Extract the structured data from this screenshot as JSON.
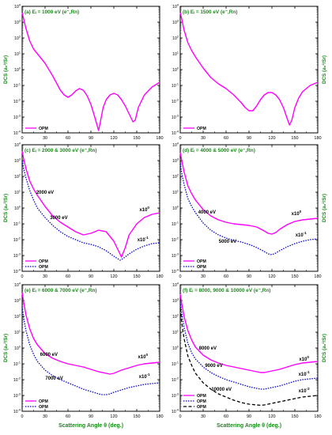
{
  "figure": {
    "y_axis_label": "DCS (a₀²/Sr)",
    "x_axis_label": "Scattering Angle θ (deg.)"
  },
  "colors": {
    "opm_magenta": "#ff00ff",
    "opm_blue": "#0000cc",
    "black": "#000000",
    "panel_title_green": "#1a8a1a"
  },
  "chart_data": [
    {
      "panel": "a",
      "type": "line",
      "title": "(a) Eᵢ = 1000 eV (e⁻,Rn)",
      "xlim": [
        0,
        180
      ],
      "xticks": [
        0,
        30,
        60,
        90,
        120,
        150,
        180
      ],
      "ylim_exp": [
        -4,
        4
      ],
      "yscale": "log",
      "ytick_exps": [
        -4,
        -3,
        -2,
        -1,
        0,
        1,
        2,
        3,
        4
      ],
      "ylabel_side": "left",
      "legend": [
        {
          "label": "OPM",
          "color": "#ff00ff",
          "style": "solid"
        }
      ],
      "series": [
        {
          "name": "OPM",
          "color": "#ff00ff",
          "style": "solid",
          "x": [
            0,
            2,
            5,
            10,
            15,
            20,
            30,
            40,
            50,
            55,
            60,
            65,
            70,
            75,
            80,
            85,
            90,
            95,
            98,
            100,
            102,
            106,
            110,
            115,
            120,
            125,
            130,
            135,
            140,
            145,
            148,
            152,
            160,
            170,
            180
          ],
          "y_exp": [
            3.6,
            3.2,
            2.6,
            1.8,
            1.3,
            1.0,
            0.4,
            -0.4,
            -1.3,
            -1.6,
            -1.75,
            -1.6,
            -1.35,
            -1.2,
            -1.3,
            -1.65,
            -2.2,
            -3.0,
            -3.5,
            -3.85,
            -3.4,
            -2.4,
            -1.9,
            -1.6,
            -1.5,
            -1.6,
            -1.9,
            -2.3,
            -2.8,
            -3.3,
            -3.2,
            -2.4,
            -1.6,
            -1.1,
            -0.8
          ]
        }
      ]
    },
    {
      "panel": "b",
      "type": "line",
      "title": "(b) Eᵢ = 1500 eV (e⁻,Rn)",
      "xlim": [
        0,
        180
      ],
      "xticks": [
        0,
        30,
        60,
        90,
        120,
        150,
        180
      ],
      "ylim_exp": [
        -4,
        4
      ],
      "yscale": "log",
      "ytick_exps": [
        -4,
        -3,
        -2,
        -1,
        0,
        1,
        2,
        3,
        4
      ],
      "ylabel_side": "right",
      "legend": [
        {
          "label": "OPM",
          "color": "#ff00ff",
          "style": "solid"
        }
      ],
      "series": [
        {
          "name": "OPM",
          "color": "#ff00ff",
          "style": "solid",
          "x": [
            0,
            2,
            5,
            10,
            15,
            20,
            30,
            40,
            50,
            60,
            70,
            80,
            85,
            90,
            95,
            100,
            105,
            110,
            115,
            120,
            125,
            130,
            135,
            140,
            143,
            146,
            150,
            155,
            160,
            170,
            180
          ],
          "y_exp": [
            3.6,
            3.2,
            2.5,
            1.7,
            1.2,
            0.8,
            0.1,
            -0.5,
            -0.9,
            -1.2,
            -1.6,
            -2.1,
            -2.4,
            -2.6,
            -2.6,
            -2.3,
            -1.9,
            -1.6,
            -1.45,
            -1.45,
            -1.6,
            -1.9,
            -2.4,
            -3.1,
            -3.5,
            -3.2,
            -2.4,
            -1.8,
            -1.4,
            -1.0,
            -0.8
          ]
        }
      ]
    },
    {
      "panel": "c",
      "type": "line",
      "title": "(c) Eᵢ = 2000 & 3000 eV (e⁻,Rn)",
      "xlim": [
        0,
        180
      ],
      "xticks": [
        0,
        30,
        60,
        90,
        120,
        150,
        180
      ],
      "ylim_exp": [
        -4,
        4
      ],
      "yscale": "log",
      "ytick_exps": [
        -4,
        -3,
        -2,
        -1,
        0,
        1,
        2,
        3,
        4
      ],
      "ylabel_side": "left",
      "annotations": [
        {
          "text": "2000 eV",
          "x": 30,
          "y_exp": 0.9
        },
        {
          "text": "3000 eV",
          "x": 48,
          "y_exp": -0.7
        },
        {
          "text": "x10⁰",
          "x": 160,
          "y_exp": -0.2
        },
        {
          "text": "x10⁻¹",
          "x": 158,
          "y_exp": -2.1
        }
      ],
      "legend": [
        {
          "label": "OPM",
          "color": "#ff00ff",
          "style": "solid"
        },
        {
          "label": "OPM",
          "color": "#0000cc",
          "style": "dotted"
        }
      ],
      "series": [
        {
          "name": "OPM",
          "color": "#ff00ff",
          "style": "solid",
          "x": [
            0,
            2,
            5,
            10,
            15,
            20,
            30,
            40,
            50,
            60,
            70,
            80,
            90,
            100,
            110,
            120,
            125,
            130,
            135,
            140,
            150,
            160,
            170,
            180
          ],
          "y_exp": [
            3.6,
            3.1,
            2.5,
            1.7,
            1.2,
            0.8,
            0.1,
            -0.5,
            -0.9,
            -1.2,
            -1.5,
            -1.7,
            -1.6,
            -1.4,
            -1.5,
            -2.1,
            -2.6,
            -3.1,
            -2.5,
            -1.7,
            -1.0,
            -0.6,
            -0.4,
            -0.3
          ]
        },
        {
          "name": "OPM",
          "color": "#0000cc",
          "style": "dotted",
          "x": [
            0,
            2,
            5,
            10,
            15,
            20,
            30,
            40,
            50,
            60,
            70,
            80,
            90,
            100,
            110,
            120,
            125,
            128,
            132,
            140,
            150,
            160,
            170,
            180
          ],
          "y_exp": [
            3.0,
            2.5,
            1.9,
            1.1,
            0.5,
            0.0,
            -0.6,
            -1.1,
            -1.5,
            -1.8,
            -2.0,
            -2.2,
            -2.3,
            -2.45,
            -2.7,
            -3.05,
            -3.2,
            -3.3,
            -3.2,
            -2.9,
            -2.6,
            -2.4,
            -2.25,
            -2.2
          ]
        }
      ]
    },
    {
      "panel": "d",
      "type": "line",
      "title": "(d) Eᵢ = 4000 & 5000 eV (e⁻,Rn)",
      "xlim": [
        0,
        180
      ],
      "xticks": [
        0,
        30,
        60,
        90,
        120,
        150,
        180
      ],
      "ylim_exp": [
        -4,
        4
      ],
      "yscale": "log",
      "ytick_exps": [
        -4,
        -3,
        -2,
        -1,
        0,
        1,
        2,
        3,
        4
      ],
      "ylabel_side": "right",
      "annotations": [
        {
          "text": "4000 eV",
          "x": 35,
          "y_exp": -0.35
        },
        {
          "text": "5000 eV",
          "x": 62,
          "y_exp": -2.2
        },
        {
          "text": "x10⁰",
          "x": 152,
          "y_exp": -0.45
        },
        {
          "text": "x10⁻¹",
          "x": 158,
          "y_exp": -1.8
        }
      ],
      "legend": [
        {
          "label": "OPM",
          "color": "#ff00ff",
          "style": "solid"
        },
        {
          "label": "OPM",
          "color": "#0000cc",
          "style": "dotted"
        }
      ],
      "series": [
        {
          "name": "OPM",
          "color": "#ff00ff",
          "style": "solid",
          "x": [
            0,
            2,
            5,
            10,
            15,
            20,
            30,
            40,
            50,
            60,
            70,
            80,
            90,
            100,
            110,
            115,
            120,
            125,
            130,
            140,
            150,
            160,
            170,
            180
          ],
          "y_exp": [
            3.5,
            3.0,
            2.3,
            1.4,
            0.9,
            0.5,
            -0.1,
            -0.5,
            -0.75,
            -0.9,
            -1.0,
            -1.05,
            -1.1,
            -1.2,
            -1.45,
            -1.6,
            -1.65,
            -1.55,
            -1.35,
            -1.05,
            -0.85,
            -0.75,
            -0.7,
            -0.65
          ]
        },
        {
          "name": "OPM",
          "color": "#0000cc",
          "style": "dotted",
          "x": [
            0,
            2,
            5,
            10,
            15,
            20,
            30,
            40,
            50,
            60,
            70,
            80,
            90,
            100,
            110,
            115,
            120,
            125,
            130,
            140,
            150,
            160,
            170,
            180
          ],
          "y_exp": [
            2.8,
            2.2,
            1.5,
            0.6,
            0.1,
            -0.3,
            -0.95,
            -1.4,
            -1.7,
            -1.9,
            -2.05,
            -2.15,
            -2.3,
            -2.5,
            -2.75,
            -2.9,
            -2.95,
            -2.85,
            -2.7,
            -2.45,
            -2.25,
            -2.1,
            -2.0,
            -1.95
          ]
        }
      ]
    },
    {
      "panel": "e",
      "type": "line",
      "title": "(e) Eᵢ = 6000 & 7000 eV (e⁻,Rn)",
      "xlim": [
        0,
        180
      ],
      "xticks": [
        0,
        30,
        60,
        90,
        120,
        150,
        180
      ],
      "ylim_exp": [
        -4,
        4
      ],
      "yscale": "log",
      "ytick_exps": [
        -4,
        -3,
        -2,
        -1,
        0,
        1,
        2,
        3,
        4
      ],
      "ylabel_side": "left",
      "annotations": [
        {
          "text": "6000 eV",
          "x": 35,
          "y_exp": -0.5
        },
        {
          "text": "7000 eV",
          "x": 42,
          "y_exp": -2.0
        },
        {
          "text": "x10⁰",
          "x": 158,
          "y_exp": -0.65
        },
        {
          "text": "x10⁻¹",
          "x": 160,
          "y_exp": -1.9
        }
      ],
      "legend": [
        {
          "label": "OPM",
          "color": "#ff00ff",
          "style": "solid"
        },
        {
          "label": "OPM",
          "color": "#0000cc",
          "style": "dotted"
        }
      ],
      "series": [
        {
          "name": "OPM",
          "color": "#ff00ff",
          "style": "solid",
          "x": [
            0,
            2,
            5,
            10,
            15,
            20,
            30,
            40,
            50,
            60,
            70,
            80,
            90,
            100,
            110,
            115,
            120,
            125,
            130,
            140,
            150,
            160,
            170,
            180
          ],
          "y_exp": [
            3.5,
            2.9,
            2.1,
            1.2,
            0.6,
            0.2,
            -0.35,
            -0.65,
            -0.85,
            -1.0,
            -1.1,
            -1.2,
            -1.35,
            -1.5,
            -1.6,
            -1.65,
            -1.6,
            -1.5,
            -1.4,
            -1.25,
            -1.1,
            -1.0,
            -0.95,
            -0.9
          ]
        },
        {
          "name": "OPM",
          "color": "#0000cc",
          "style": "dotted",
          "x": [
            0,
            2,
            5,
            10,
            15,
            20,
            30,
            40,
            50,
            60,
            70,
            80,
            90,
            100,
            105,
            110,
            115,
            120,
            130,
            140,
            150,
            160,
            170,
            180
          ],
          "y_exp": [
            2.6,
            1.9,
            1.1,
            0.2,
            -0.4,
            -0.85,
            -1.4,
            -1.75,
            -2.0,
            -2.2,
            -2.4,
            -2.6,
            -2.75,
            -2.9,
            -2.95,
            -2.95,
            -2.9,
            -2.8,
            -2.65,
            -2.5,
            -2.4,
            -2.3,
            -2.25,
            -2.2
          ]
        }
      ]
    },
    {
      "panel": "f",
      "type": "line",
      "title": "(f) Eᵢ = 8000, 9000 & 10000 eV (e⁻,Rn)",
      "xlim": [
        0,
        180
      ],
      "xticks": [
        0,
        30,
        60,
        90,
        120,
        150,
        180
      ],
      "ylim_exp": [
        -4,
        4
      ],
      "yscale": "log",
      "ytick_exps": [
        -4,
        -3,
        -2,
        -1,
        0,
        1,
        2,
        3,
        4
      ],
      "ylabel_side": "right",
      "annotations": [
        {
          "text": "8000 eV",
          "x": 36,
          "y_exp": -0.1
        },
        {
          "text": "9000 eV",
          "x": 44,
          "y_exp": -1.2
        },
        {
          "text": "10000 eV",
          "x": 54,
          "y_exp": -2.7
        },
        {
          "text": "x10⁰",
          "x": 162,
          "y_exp": -0.8
        },
        {
          "text": "x10⁻¹",
          "x": 162,
          "y_exp": -1.75
        },
        {
          "text": "x10⁻²",
          "x": 162,
          "y_exp": -2.8
        }
      ],
      "legend": [
        {
          "label": "OPM",
          "color": "#ff00ff",
          "style": "solid"
        },
        {
          "label": "OPM",
          "color": "#0000cc",
          "style": "dotted"
        },
        {
          "label": "OPM",
          "color": "#000000",
          "style": "dashed"
        }
      ],
      "series": [
        {
          "name": "OPM",
          "color": "#ff00ff",
          "style": "solid",
          "x": [
            0,
            2,
            5,
            10,
            15,
            20,
            30,
            40,
            50,
            60,
            70,
            80,
            90,
            100,
            105,
            110,
            115,
            120,
            130,
            140,
            150,
            160,
            170,
            180
          ],
          "y_exp": [
            3.4,
            2.8,
            2.0,
            1.1,
            0.5,
            0.05,
            -0.45,
            -0.75,
            -0.95,
            -1.1,
            -1.2,
            -1.3,
            -1.4,
            -1.5,
            -1.55,
            -1.55,
            -1.5,
            -1.45,
            -1.35,
            -1.2,
            -1.05,
            -0.95,
            -0.9,
            -0.85
          ]
        },
        {
          "name": "OPM",
          "color": "#0000cc",
          "style": "dotted",
          "x": [
            0,
            2,
            5,
            10,
            15,
            20,
            30,
            40,
            50,
            60,
            70,
            80,
            90,
            100,
            105,
            110,
            115,
            120,
            130,
            140,
            150,
            160,
            170,
            180
          ],
          "y_exp": [
            2.9,
            2.2,
            1.3,
            0.3,
            -0.3,
            -0.7,
            -1.2,
            -1.55,
            -1.8,
            -2.0,
            -2.15,
            -2.3,
            -2.45,
            -2.55,
            -2.6,
            -2.6,
            -2.55,
            -2.5,
            -2.4,
            -2.25,
            -2.1,
            -2.0,
            -1.95,
            -1.9
          ]
        },
        {
          "name": "OPM",
          "color": "#000000",
          "style": "dashed",
          "x": [
            0,
            2,
            5,
            10,
            15,
            20,
            30,
            40,
            50,
            60,
            70,
            80,
            90,
            100,
            105,
            110,
            115,
            120,
            130,
            140,
            150,
            160,
            170,
            180
          ],
          "y_exp": [
            2.5,
            1.6,
            0.6,
            -0.5,
            -1.1,
            -1.6,
            -2.2,
            -2.6,
            -2.9,
            -3.1,
            -3.3,
            -3.45,
            -3.55,
            -3.6,
            -3.62,
            -3.6,
            -3.55,
            -3.5,
            -3.4,
            -3.3,
            -3.2,
            -3.1,
            -3.05,
            -3.0
          ]
        }
      ]
    }
  ]
}
